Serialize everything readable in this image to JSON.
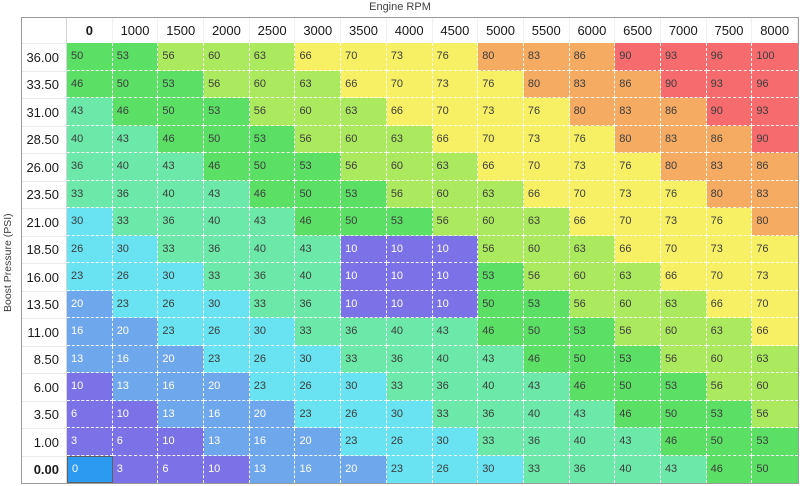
{
  "title": "Engine RPM",
  "y_axis_label": "Boost Pressure (PSI)",
  "chart_data": {
    "type": "heatmap",
    "xlabel": "Engine RPM",
    "ylabel": "Boost Pressure (PSI)",
    "columns": [
      "0",
      "1000",
      "1500",
      "2000",
      "2500",
      "3000",
      "3500",
      "4000",
      "4500",
      "5000",
      "5500",
      "6000",
      "6500",
      "7000",
      "7500",
      "8000"
    ],
    "rows": [
      "36.00",
      "33.50",
      "31.00",
      "28.50",
      "26.00",
      "23.50",
      "21.00",
      "18.50",
      "16.00",
      "13.50",
      "11.00",
      "8.50",
      "6.00",
      "3.50",
      "1.00",
      "0.00"
    ],
    "values": [
      [
        50,
        53,
        56,
        60,
        63,
        66,
        70,
        73,
        76,
        80,
        83,
        86,
        90,
        93,
        96,
        100
      ],
      [
        46,
        50,
        53,
        56,
        60,
        63,
        66,
        70,
        73,
        76,
        80,
        83,
        86,
        90,
        93,
        96
      ],
      [
        43,
        46,
        50,
        53,
        56,
        60,
        63,
        66,
        70,
        73,
        76,
        80,
        83,
        86,
        90,
        93
      ],
      [
        40,
        43,
        46,
        50,
        53,
        56,
        60,
        63,
        66,
        70,
        73,
        76,
        80,
        83,
        86,
        90
      ],
      [
        36,
        40,
        43,
        46,
        50,
        53,
        56,
        60,
        63,
        66,
        70,
        73,
        76,
        80,
        83,
        86
      ],
      [
        33,
        36,
        40,
        43,
        46,
        50,
        53,
        56,
        60,
        63,
        66,
        70,
        73,
        76,
        80,
        83
      ],
      [
        30,
        33,
        36,
        40,
        43,
        46,
        50,
        53,
        56,
        60,
        63,
        66,
        70,
        73,
        76,
        80
      ],
      [
        26,
        30,
        33,
        36,
        40,
        43,
        10,
        10,
        10,
        56,
        60,
        63,
        66,
        70,
        73,
        76
      ],
      [
        23,
        26,
        30,
        33,
        36,
        40,
        10,
        10,
        10,
        53,
        56,
        60,
        63,
        66,
        70,
        73
      ],
      [
        20,
        23,
        26,
        30,
        33,
        36,
        10,
        10,
        10,
        50,
        53,
        56,
        60,
        63,
        66,
        70
      ],
      [
        16,
        20,
        23,
        26,
        30,
        33,
        36,
        40,
        43,
        46,
        50,
        53,
        56,
        60,
        63,
        66
      ],
      [
        13,
        16,
        20,
        23,
        26,
        30,
        33,
        36,
        40,
        43,
        46,
        50,
        53,
        56,
        60,
        63
      ],
      [
        10,
        13,
        16,
        20,
        23,
        26,
        30,
        33,
        36,
        40,
        43,
        46,
        50,
        53,
        56,
        60
      ],
      [
        6,
        10,
        13,
        16,
        20,
        23,
        26,
        30,
        33,
        36,
        40,
        43,
        46,
        50,
        53,
        56
      ],
      [
        3,
        6,
        10,
        13,
        16,
        20,
        23,
        26,
        30,
        33,
        36,
        40,
        43,
        46,
        50,
        53
      ],
      [
        0,
        3,
        6,
        10,
        13,
        16,
        20,
        23,
        26,
        30,
        33,
        36,
        40,
        43,
        46,
        50
      ]
    ],
    "selected": {
      "row": "0.00",
      "column": "0",
      "value": 0
    }
  },
  "style": {
    "color_scale": [
      {
        "max": 12,
        "color": "#7c72e8",
        "text": "#ffffff"
      },
      {
        "max": 22,
        "color": "#6fa7ec",
        "text": "#ffffff"
      },
      {
        "max": 32,
        "color": "#69e2f2",
        "text": "#3d3d3d"
      },
      {
        "max": 45,
        "color": "#6ce9a8",
        "text": "#3d3d3d"
      },
      {
        "max": 55,
        "color": "#5be065",
        "text": "#3d3d3d"
      },
      {
        "max": 65,
        "color": "#abe95e",
        "text": "#3d3d3d"
      },
      {
        "max": 78,
        "color": "#f7f065",
        "text": "#3d3d3d"
      },
      {
        "max": 88,
        "color": "#f6ab63",
        "text": "#3d3d3d"
      },
      {
        "max": 1000,
        "color": "#f56b6e",
        "text": "#3d3d3d"
      }
    ],
    "selected_cell": {
      "bg": "#2b9af0",
      "border": "#606060",
      "text": "#ffffff"
    },
    "table_border": "#9b9b9b"
  }
}
